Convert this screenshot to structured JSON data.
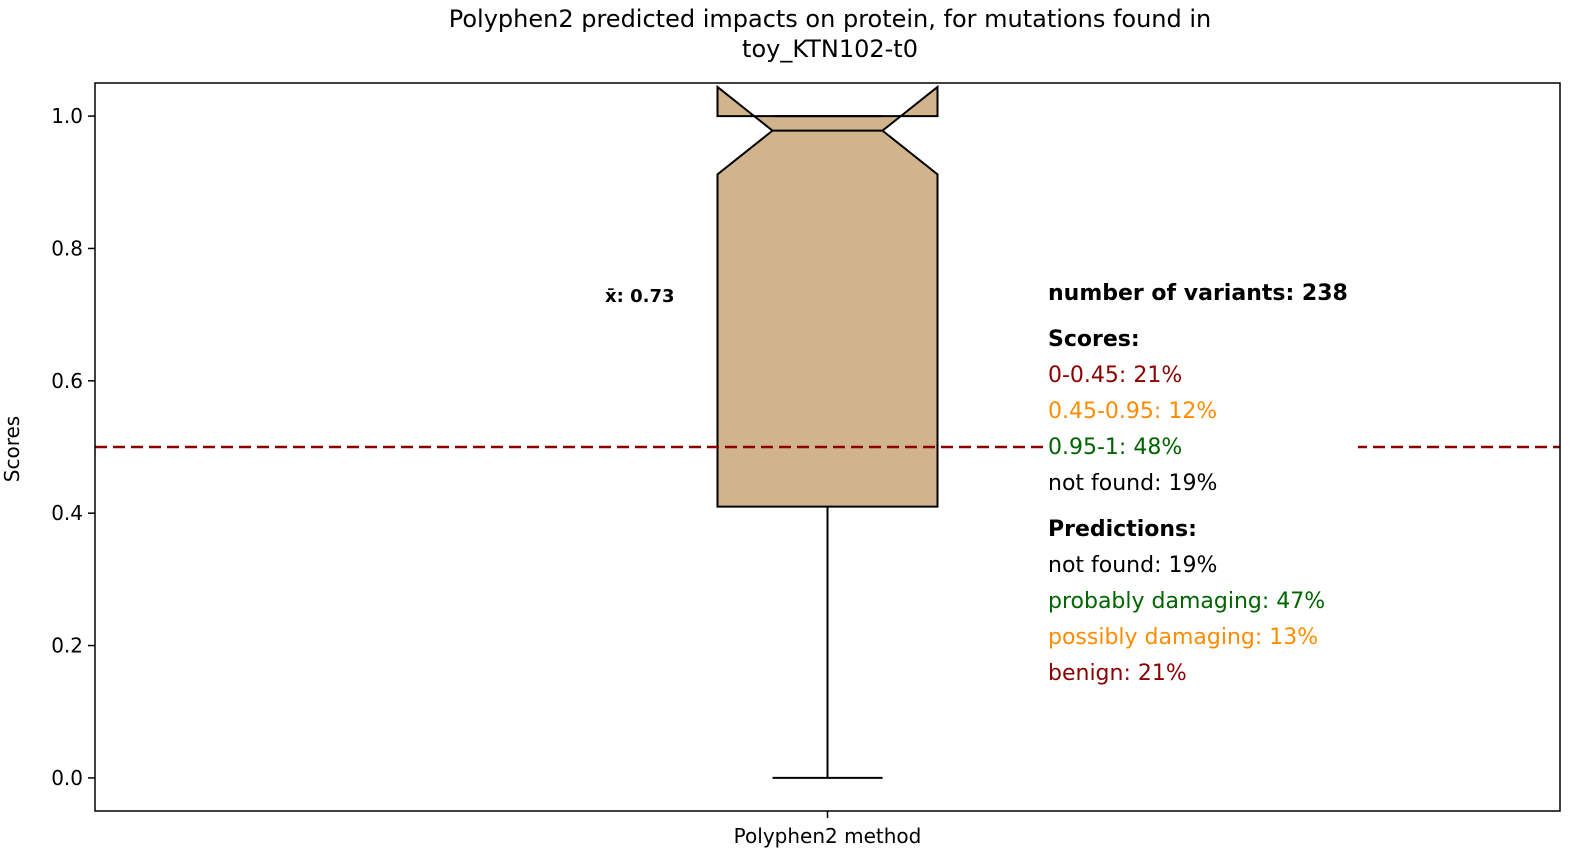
{
  "colors": {
    "box_fill": "#d2b48c",
    "threshold_line": "#8b0000",
    "red": "#8b0000",
    "orange": "#ff8c00",
    "green": "#006400",
    "black": "#000000"
  },
  "chart_data": {
    "type": "box",
    "title_lines": [
      "Polyphen2 predicted impacts on protein, for mutations found in",
      "toy_KTN102-t0"
    ],
    "xlabel": "",
    "ylabel": "Scores",
    "ylim": [
      -0.05,
      1.05
    ],
    "yticks": [
      "0.0",
      "0.2",
      "0.4",
      "0.6",
      "0.8",
      "1.0"
    ],
    "categories": [
      "Polyphen2 method"
    ],
    "notched": true,
    "box": {
      "whisker_low": 0.0,
      "q1": 0.41,
      "median": 0.978,
      "q3": 1.0,
      "whisker_high": 1.0,
      "notch_low": 0.912,
      "notch_high": 1.044
    },
    "mean_label": "x̄: 0.73",
    "threshold": 0.5,
    "grid": false
  },
  "stats": {
    "variants": "number of variants: 238",
    "scores_header": "Scores:",
    "scores": [
      {
        "text": "0-0.45: 21%",
        "color": "#8b0000"
      },
      {
        "text": "0.45-0.95: 12%",
        "color": "#ff8c00"
      },
      {
        "text": "0.95-1: 48%",
        "color": "#006400"
      },
      {
        "text": "not found: 19%",
        "color": "#000000"
      }
    ],
    "predictions_header": "Predictions:",
    "predictions": [
      {
        "text": "not found: 19%",
        "color": "#000000"
      },
      {
        "text": "probably damaging: 47%",
        "color": "#006400"
      },
      {
        "text": "possibly damaging: 13%",
        "color": "#ff8c00"
      },
      {
        "text": "benign: 21%",
        "color": "#8b0000"
      }
    ]
  }
}
